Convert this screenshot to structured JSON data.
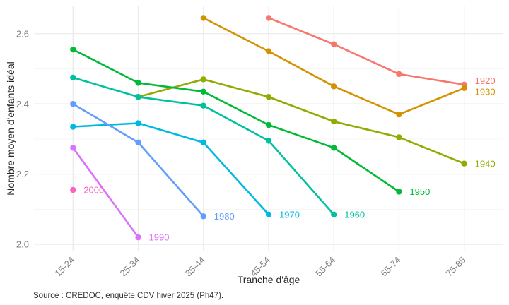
{
  "chart_data": {
    "type": "line",
    "title": "",
    "xlabel": "Tranche d'âge",
    "ylabel": "Nombre moyen d'enfants idéal",
    "caption": "Source : CREDOC, enquête CDV hiver 2025 (Ph47).",
    "categories": [
      "15-24",
      "25-34",
      "35-44",
      "45-54",
      "55-64",
      "65-74",
      "75-85"
    ],
    "series": [
      {
        "name": "1920",
        "color": "#F8766D",
        "values": [
          null,
          null,
          null,
          2.645,
          2.57,
          2.485,
          2.455
        ]
      },
      {
        "name": "1930",
        "color": "#D39200",
        "values": [
          null,
          null,
          2.645,
          2.55,
          2.45,
          2.37,
          2.445
        ]
      },
      {
        "name": "1940",
        "color": "#93AA00",
        "values": [
          null,
          2.42,
          2.47,
          2.42,
          2.35,
          2.305,
          2.23
        ]
      },
      {
        "name": "1950",
        "color": "#00BA38",
        "values": [
          2.555,
          2.46,
          2.435,
          2.34,
          2.275,
          2.15,
          null
        ]
      },
      {
        "name": "1960",
        "color": "#00C19F",
        "values": [
          2.475,
          2.42,
          2.395,
          2.295,
          2.085,
          null,
          null
        ]
      },
      {
        "name": "1970",
        "color": "#00B9E3",
        "values": [
          2.335,
          2.345,
          2.29,
          2.085,
          null,
          null,
          null
        ]
      },
      {
        "name": "1980",
        "color": "#619CFF",
        "values": [
          2.4,
          2.29,
          2.08,
          null,
          null,
          null,
          null
        ]
      },
      {
        "name": "1990",
        "color": "#DB72FB",
        "values": [
          2.275,
          2.02,
          null,
          null,
          null,
          null,
          null
        ]
      },
      {
        "name": "2000",
        "color": "#FF61C3",
        "values": [
          2.155,
          null,
          null,
          null,
          null,
          null,
          null
        ]
      }
    ],
    "yticks": [
      {
        "value": 2.0,
        "label": "2.0"
      },
      {
        "value": 2.2,
        "label": "2.2"
      },
      {
        "value": 2.4,
        "label": "2.4"
      },
      {
        "value": 2.6,
        "label": "2.6"
      }
    ],
    "yticks_minor": [
      2.1,
      2.3,
      2.5
    ],
    "ylim": [
      1.98,
      2.68
    ],
    "legend_position": "line-end-labels",
    "grid": true,
    "colors": {
      "grid_major": "#EBEBEB",
      "grid_minor": "#F4F4F4",
      "axis_text": "#7E7E7E",
      "axis_title": "#262626",
      "background": "#FFFFFF"
    }
  }
}
